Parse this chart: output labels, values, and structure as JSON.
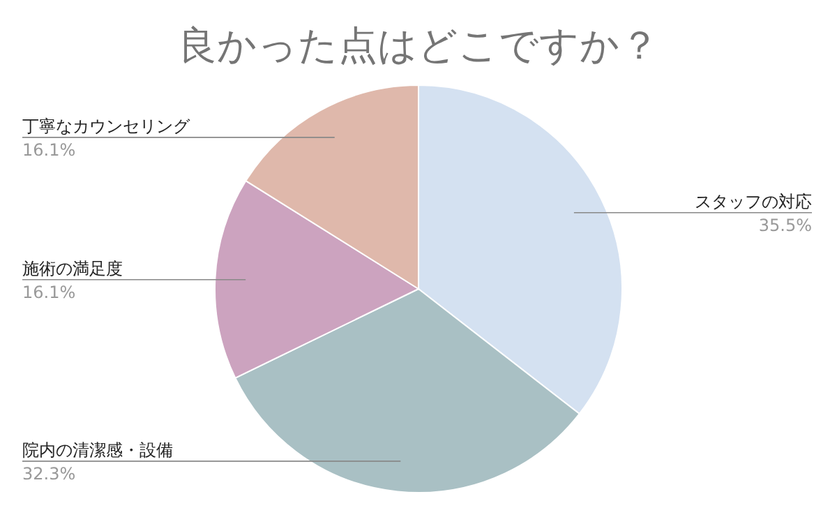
{
  "chart_data": {
    "type": "pie",
    "title": "良かった点はどこですか？",
    "categories": [
      "スタッフの対応",
      "院内の清潔感・設備",
      "施術の満足度",
      "丁寧なカウンセリング"
    ],
    "values": [
      35.5,
      32.3,
      16.1,
      16.1
    ],
    "colors": [
      "#d4e1f1",
      "#a9c0c4",
      "#cca3bf",
      "#dfb8ab"
    ],
    "value_labels": [
      "35.5%",
      "32.3%",
      "16.1%",
      "16.1%"
    ]
  }
}
